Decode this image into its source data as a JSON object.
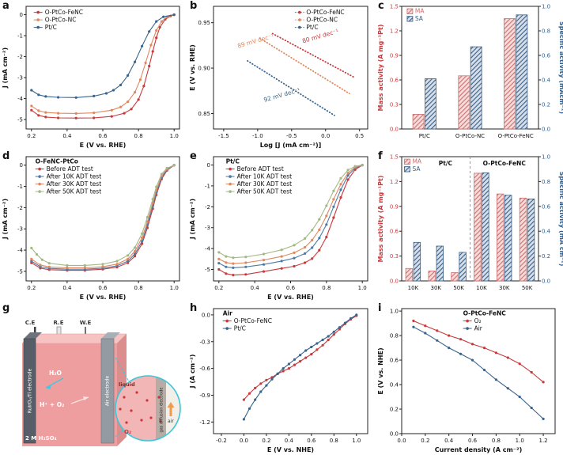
{
  "colors": {
    "red": "#c73a3c",
    "orange": "#e0885e",
    "blue": "#39648c",
    "lightblue": "#4d7ba8",
    "green": "#a3b985",
    "ma_fill": "#f6dcdb",
    "ma_stroke": "#cc6f6e",
    "sa_fill": "#d6dfe9",
    "sa_stroke": "#3a5f88",
    "frame": "#222222",
    "cyan": "#3bc6da"
  },
  "chart_data": [
    {
      "id": "a",
      "letter": "a",
      "type": "line",
      "xlabel": "E (V vs. RHE)",
      "ylabel": "J (mA cm⁻²)",
      "xlim": [
        0.17,
        1.03
      ],
      "ylim": [
        -5.45,
        0.4
      ],
      "xticks": [
        "0.2",
        "0.4",
        "0.6",
        "0.8",
        "1.0"
      ],
      "yticks": [
        "-5",
        "-4",
        "-3",
        "-2",
        "-1",
        "0"
      ],
      "legend": {
        "x": 0.05,
        "y": 0.02
      },
      "series": [
        {
          "name": "O-PtCo-FeNC",
          "color": "#c73a3c",
          "x": [
            0.2,
            0.24,
            0.28,
            0.35,
            0.45,
            0.55,
            0.65,
            0.72,
            0.76,
            0.8,
            0.83,
            0.86,
            0.88,
            0.9,
            0.92,
            0.95,
            0.98,
            1.0
          ],
          "y": [
            -4.55,
            -4.8,
            -4.88,
            -4.92,
            -4.93,
            -4.92,
            -4.85,
            -4.7,
            -4.5,
            -4.05,
            -3.4,
            -2.45,
            -1.75,
            -1.1,
            -0.6,
            -0.22,
            -0.06,
            0.0
          ]
        },
        {
          "name": "O-PtCo-NC",
          "color": "#e0885e",
          "x": [
            0.2,
            0.24,
            0.28,
            0.35,
            0.45,
            0.55,
            0.65,
            0.7,
            0.74,
            0.78,
            0.81,
            0.84,
            0.87,
            0.9,
            0.93,
            0.96,
            1.0
          ],
          "y": [
            -4.35,
            -4.58,
            -4.66,
            -4.7,
            -4.71,
            -4.68,
            -4.55,
            -4.4,
            -4.15,
            -3.7,
            -3.1,
            -2.3,
            -1.45,
            -0.75,
            -0.32,
            -0.1,
            0.0
          ]
        },
        {
          "name": "Pt/C",
          "color": "#39648c",
          "x": [
            0.2,
            0.24,
            0.28,
            0.35,
            0.45,
            0.55,
            0.62,
            0.66,
            0.7,
            0.74,
            0.78,
            0.82,
            0.86,
            0.9,
            0.94,
            1.0
          ],
          "y": [
            -3.6,
            -3.82,
            -3.9,
            -3.94,
            -3.95,
            -3.88,
            -3.75,
            -3.6,
            -3.35,
            -2.9,
            -2.25,
            -1.5,
            -0.8,
            -0.32,
            -0.1,
            0.0
          ]
        }
      ]
    },
    {
      "id": "b",
      "letter": "b",
      "type": "line",
      "xlabel": "Log [J (mA cm⁻²)]",
      "ylabel": "E (V vs. RHE)",
      "xlim": [
        -1.65,
        0.62
      ],
      "ylim": [
        0.833,
        0.968
      ],
      "xticks": [
        "-1.5",
        "-1.0",
        "-0.5",
        "0.0",
        "0.5"
      ],
      "yticks": [
        "0.85",
        "0.90",
        "0.95"
      ],
      "legend": {
        "x": 0.53,
        "y": 0.02
      },
      "series": [
        {
          "name": "O-PtCo-FeNC",
          "color": "#c73a3c",
          "dash": "0.6 3",
          "width": 1.8,
          "x": [
            -0.78,
            0.42
          ],
          "y": [
            0.938,
            0.89
          ]
        },
        {
          "name": "O-PtCo-NC",
          "color": "#e0885e",
          "dash": "0.6 3",
          "width": 1.8,
          "x": [
            -0.97,
            0.35
          ],
          "y": [
            0.933,
            0.872
          ]
        },
        {
          "name": "Pt/C",
          "color": "#39648c",
          "dash": "0.6 3",
          "width": 1.8,
          "x": [
            -1.15,
            0.13
          ],
          "y": [
            0.908,
            0.848
          ]
        }
      ],
      "notes": [
        {
          "t": "80 mV dec⁻¹",
          "x": 0.58,
          "y": 0.3,
          "rot": -16,
          "c": "#c73a3c"
        },
        {
          "t": "89 mV dec⁻¹",
          "x": 0.16,
          "y": 0.34,
          "rot": -16,
          "c": "#e0885e"
        },
        {
          "t": "92 mV dec⁻¹",
          "x": 0.33,
          "y": 0.78,
          "rot": -16,
          "c": "#39648c"
        }
      ]
    },
    {
      "id": "c",
      "letter": "c",
      "type": "bar",
      "ylabel": "Mass activity (A mg⁻¹Pt)",
      "y2label": "Specific activity (mAcm⁻²)",
      "ycolor": "#c73a3c",
      "y2color": "#2e5e8f",
      "ylim": [
        0,
        1.5
      ],
      "y2lim": [
        0,
        1.0
      ],
      "yticks": [
        "0.0",
        "0.3",
        "0.6",
        "0.9",
        "1.2",
        "1.5"
      ],
      "y2ticks": [
        "0.0",
        "0.2",
        "0.4",
        "0.6",
        "0.8",
        "1.0"
      ],
      "categories": [
        "Pt/C",
        "O-PtCo-NC",
        "O-PtCo-FeNC"
      ],
      "legend": {
        "x": 0.04,
        "y": 0.01
      },
      "series": [
        {
          "name": "MA",
          "axis": "left",
          "color": "#cc6f6e",
          "values": [
            0.18,
            0.65,
            1.35
          ]
        },
        {
          "name": "SA",
          "axis": "right",
          "color": "#3a5f88",
          "values": [
            0.41,
            0.67,
            0.93
          ]
        }
      ]
    },
    {
      "id": "d",
      "letter": "d",
      "type": "line",
      "xlabel": "E (V vs. RHE)",
      "ylabel": "J (mA cm⁻²)",
      "xlim": [
        0.17,
        1.03
      ],
      "ylim": [
        -5.45,
        0.4
      ],
      "xticks": [
        "0.2",
        "0.4",
        "0.6",
        "0.8",
        "1.0"
      ],
      "yticks": [
        "-5",
        "-4",
        "-3",
        "-2",
        "-1",
        "0"
      ],
      "legend": {
        "x": 0.06,
        "y": 0.01,
        "title": "O-FeNC-PtCo"
      },
      "series": [
        {
          "name": "Before ADT test",
          "color": "#c73a3c",
          "x": [
            0.2,
            0.25,
            0.3,
            0.4,
            0.5,
            0.6,
            0.68,
            0.74,
            0.78,
            0.82,
            0.85,
            0.88,
            0.9,
            0.93,
            0.96,
            1.0
          ],
          "y": [
            -4.6,
            -4.85,
            -4.92,
            -4.95,
            -4.95,
            -4.9,
            -4.8,
            -4.6,
            -4.28,
            -3.7,
            -2.95,
            -2.05,
            -1.4,
            -0.65,
            -0.25,
            0.0
          ]
        },
        {
          "name": "After 10K ADT test",
          "color": "#4d7ba8",
          "x": [
            0.2,
            0.25,
            0.3,
            0.4,
            0.5,
            0.6,
            0.68,
            0.74,
            0.78,
            0.82,
            0.85,
            0.88,
            0.9,
            0.93,
            0.96,
            1.0
          ],
          "y": [
            -4.52,
            -4.78,
            -4.86,
            -4.9,
            -4.9,
            -4.85,
            -4.74,
            -4.52,
            -4.18,
            -3.58,
            -2.82,
            -1.92,
            -1.3,
            -0.58,
            -0.22,
            0.0
          ]
        },
        {
          "name": "After 30K ADT test",
          "color": "#e0885e",
          "x": [
            0.2,
            0.25,
            0.3,
            0.4,
            0.5,
            0.6,
            0.68,
            0.74,
            0.78,
            0.82,
            0.85,
            0.88,
            0.9,
            0.93,
            0.96,
            1.0
          ],
          "y": [
            -4.42,
            -4.7,
            -4.79,
            -4.83,
            -4.83,
            -4.78,
            -4.66,
            -4.42,
            -4.05,
            -3.42,
            -2.66,
            -1.78,
            -1.18,
            -0.5,
            -0.18,
            0.0
          ]
        },
        {
          "name": "After 50K ADT test",
          "color": "#a3b985",
          "x": [
            0.2,
            0.23,
            0.26,
            0.3,
            0.4,
            0.5,
            0.6,
            0.68,
            0.74,
            0.78,
            0.82,
            0.85,
            0.88,
            0.9,
            0.93,
            0.96,
            1.0
          ],
          "y": [
            -3.9,
            -4.2,
            -4.45,
            -4.62,
            -4.72,
            -4.72,
            -4.66,
            -4.52,
            -4.25,
            -3.88,
            -3.22,
            -2.45,
            -1.6,
            -1.02,
            -0.42,
            -0.14,
            0.0
          ]
        }
      ]
    },
    {
      "id": "e",
      "letter": "e",
      "type": "line",
      "xlabel": "E (V vs. RHE)",
      "ylabel": "J (mA cm⁻²)",
      "xlim": [
        0.17,
        1.03
      ],
      "ylim": [
        -5.55,
        0.4
      ],
      "xticks": [
        "0.2",
        "0.4",
        "0.6",
        "0.8",
        "1.0"
      ],
      "yticks": [
        "-5",
        "-4",
        "-3",
        "-2",
        "-1",
        "0"
      ],
      "legend": {
        "x": 0.08,
        "y": 0.01,
        "title": "Pt/C"
      },
      "series": [
        {
          "name": "Before ADT test",
          "color": "#c73a3c",
          "x": [
            0.2,
            0.24,
            0.28,
            0.35,
            0.45,
            0.55,
            0.62,
            0.68,
            0.72,
            0.76,
            0.8,
            0.84,
            0.88,
            0.92,
            0.96,
            1.0
          ],
          "y": [
            -5.0,
            -5.2,
            -5.27,
            -5.24,
            -5.1,
            -4.95,
            -4.85,
            -4.68,
            -4.48,
            -4.08,
            -3.45,
            -2.52,
            -1.55,
            -0.7,
            -0.22,
            0.0
          ]
        },
        {
          "name": "After 10K ADT test",
          "color": "#4d7ba8",
          "x": [
            0.2,
            0.24,
            0.28,
            0.35,
            0.45,
            0.55,
            0.62,
            0.68,
            0.72,
            0.76,
            0.8,
            0.84,
            0.88,
            0.92,
            0.96,
            1.0
          ],
          "y": [
            -4.7,
            -4.88,
            -4.92,
            -4.88,
            -4.76,
            -4.6,
            -4.46,
            -4.24,
            -3.96,
            -3.5,
            -2.85,
            -2.0,
            -1.18,
            -0.5,
            -0.15,
            0.0
          ]
        },
        {
          "name": "After 30K ADT test",
          "color": "#e0885e",
          "x": [
            0.2,
            0.24,
            0.28,
            0.35,
            0.45,
            0.55,
            0.62,
            0.68,
            0.72,
            0.76,
            0.8,
            0.84,
            0.88,
            0.92,
            0.96,
            1.0
          ],
          "y": [
            -4.5,
            -4.67,
            -4.72,
            -4.68,
            -4.55,
            -4.38,
            -4.2,
            -3.94,
            -3.6,
            -3.1,
            -2.44,
            -1.64,
            -0.92,
            -0.38,
            -0.1,
            0.0
          ]
        },
        {
          "name": "After 50K ADT test",
          "color": "#a3b985",
          "x": [
            0.2,
            0.24,
            0.28,
            0.35,
            0.45,
            0.55,
            0.62,
            0.68,
            0.72,
            0.76,
            0.8,
            0.84,
            0.88,
            0.92,
            0.96,
            1.0
          ],
          "y": [
            -4.18,
            -4.38,
            -4.44,
            -4.4,
            -4.26,
            -4.06,
            -3.84,
            -3.52,
            -3.12,
            -2.6,
            -1.95,
            -1.24,
            -0.64,
            -0.24,
            -0.06,
            0.0
          ]
        }
      ]
    },
    {
      "id": "f",
      "letter": "f",
      "type": "bar",
      "ylabel": "Mass activity (A mg⁻¹Pt)",
      "y2label": "Specific activity (mA cm⁻²)",
      "ycolor": "#c73a3c",
      "y2color": "#2e5e8f",
      "ylim": [
        0,
        1.5
      ],
      "y2lim": [
        0,
        1.0
      ],
      "yticks": [
        "0.0",
        "0.3",
        "0.6",
        "0.9",
        "1.2",
        "1.5"
      ],
      "y2ticks": [
        "0.0",
        "0.2",
        "0.4",
        "0.6",
        "0.8",
        "1.0"
      ],
      "categories": [
        "10K",
        "30K",
        "50K",
        "10K",
        "30K",
        "50K"
      ],
      "dividers": [
        0.5
      ],
      "legend": {
        "x": 0.02,
        "y": 0.01
      },
      "notes": [
        {
          "t": "Pt/C",
          "x": 0.32,
          "y": 0.07,
          "b": true,
          "anchor": "middle"
        },
        {
          "t": "O-PtCo-FeNC",
          "x": 0.75,
          "y": 0.07,
          "b": true,
          "anchor": "middle"
        }
      ],
      "series": [
        {
          "name": "MA",
          "axis": "left",
          "color": "#cc6f6e",
          "values": [
            0.15,
            0.12,
            0.1,
            1.3,
            1.05,
            1.0
          ]
        },
        {
          "name": "SA",
          "axis": "right",
          "color": "#3a5f88",
          "values": [
            0.31,
            0.28,
            0.23,
            0.87,
            0.69,
            0.66
          ]
        }
      ]
    },
    {
      "id": "h",
      "letter": "h",
      "type": "line",
      "xlabel": "E (V vs. NHE)",
      "ylabel": "J (A cm⁻²)",
      "xlim": [
        -0.27,
        1.1
      ],
      "ylim": [
        -1.33,
        0.07
      ],
      "xticks": [
        "-0.2",
        "0.0",
        "0.2",
        "0.4",
        "0.6",
        "0.8",
        "1.0"
      ],
      "yticks": [
        "-1.2",
        "-0.9",
        "-0.6",
        "-0.3",
        "0.0"
      ],
      "legend": {
        "x": 0.06,
        "y": 0.01,
        "title": "Air"
      },
      "series": [
        {
          "name": "O-PtCo-FeNC",
          "color": "#c73a3c",
          "x": [
            0.0,
            0.05,
            0.1,
            0.15,
            0.2,
            0.25,
            0.3,
            0.35,
            0.4,
            0.45,
            0.5,
            0.55,
            0.6,
            0.65,
            0.7,
            0.75,
            0.8,
            0.85,
            0.9,
            0.95,
            1.0
          ],
          "y": [
            -0.95,
            -0.88,
            -0.82,
            -0.77,
            -0.73,
            -0.7,
            -0.66,
            -0.63,
            -0.6,
            -0.56,
            -0.52,
            -0.48,
            -0.44,
            -0.39,
            -0.34,
            -0.28,
            -0.22,
            -0.16,
            -0.1,
            -0.05,
            -0.01
          ]
        },
        {
          "name": "Pt/C",
          "color": "#39648c",
          "x": [
            0.0,
            0.05,
            0.1,
            0.15,
            0.2,
            0.25,
            0.3,
            0.35,
            0.4,
            0.45,
            0.5,
            0.55,
            0.6,
            0.65,
            0.7,
            0.75,
            0.8,
            0.85,
            0.9,
            0.95,
            1.0
          ],
          "y": [
            -1.17,
            -1.05,
            -0.95,
            -0.86,
            -0.79,
            -0.72,
            -0.66,
            -0.6,
            -0.55,
            -0.5,
            -0.45,
            -0.4,
            -0.36,
            -0.32,
            -0.28,
            -0.24,
            -0.19,
            -0.14,
            -0.09,
            -0.04,
            0.0
          ]
        }
      ]
    },
    {
      "id": "i",
      "letter": "i",
      "type": "line",
      "xlabel": "Current density (A cm⁻²)",
      "ylabel": "E (V vs. NHE)",
      "xlim": [
        0,
        1.3
      ],
      "ylim": [
        0,
        1.02
      ],
      "xticks": [
        "0.0",
        "0.2",
        "0.4",
        "0.6",
        "0.8",
        "1.0",
        "1.2"
      ],
      "yticks": [
        "0.0",
        "0.2",
        "0.4",
        "0.6",
        "0.8",
        "1.0"
      ],
      "legend": {
        "x": 0.4,
        "y": 0.01,
        "title": "O-PtCo-FeNC"
      },
      "series": [
        {
          "name": "O₂",
          "color": "#c73a3c",
          "x": [
            0.1,
            0.2,
            0.3,
            0.4,
            0.5,
            0.6,
            0.7,
            0.8,
            0.9,
            1.0,
            1.1,
            1.2
          ],
          "y": [
            0.92,
            0.88,
            0.84,
            0.8,
            0.77,
            0.73,
            0.7,
            0.66,
            0.62,
            0.57,
            0.5,
            0.42
          ]
        },
        {
          "name": "Air",
          "color": "#39648c",
          "x": [
            0.1,
            0.2,
            0.3,
            0.4,
            0.5,
            0.6,
            0.7,
            0.8,
            0.9,
            1.0,
            1.1,
            1.2
          ],
          "y": [
            0.87,
            0.82,
            0.76,
            0.7,
            0.65,
            0.6,
            0.52,
            0.44,
            0.37,
            0.3,
            0.21,
            0.12
          ]
        }
      ]
    }
  ],
  "panel_g": {
    "letter": "g",
    "ce": "C.E",
    "re": "R.E",
    "we": "W.E",
    "left_electrode": "RuIrOₓ/Ti electrode",
    "right_electrode": "Air electrode",
    "h2o": "H₂O",
    "reaction": "H⁺ + O₂",
    "electrolyte": "2 M H₂SO₄",
    "liquid": "liquid",
    "gde": "gas diffusion electrode",
    "o2": "O₂",
    "air": "air"
  }
}
